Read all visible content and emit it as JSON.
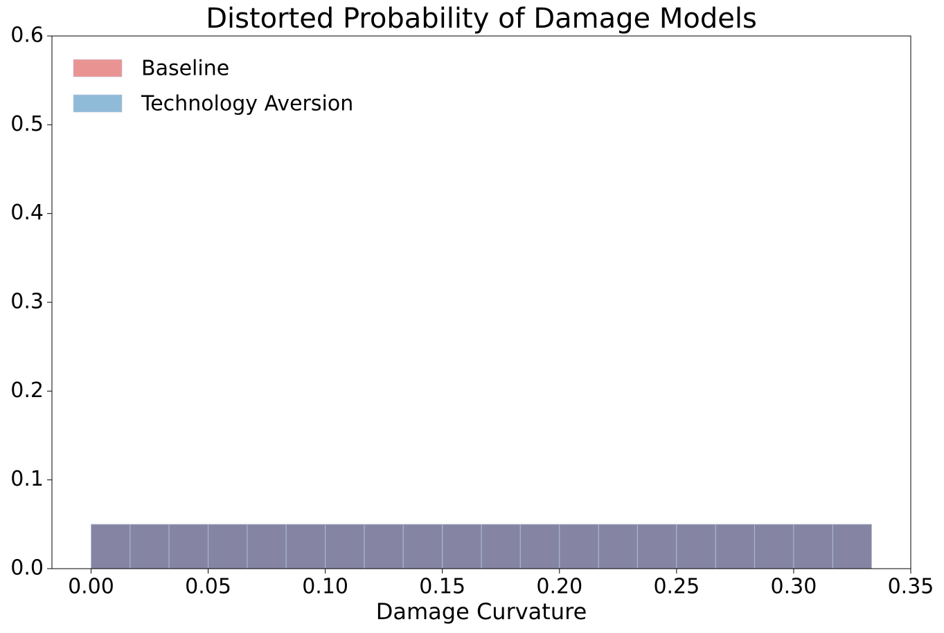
{
  "chart_data": {
    "type": "histogram",
    "title": "Distorted Probability of Damage Models",
    "xlabel": "Damage Curvature",
    "bins": [
      0,
      0.0167,
      0.0333,
      0.05,
      0.0667,
      0.0833,
      0.1,
      0.1167,
      0.1333,
      0.15,
      0.1667,
      0.1833,
      0.2,
      0.2167,
      0.2333,
      0.25,
      0.2667,
      0.2833,
      0.3,
      0.3167,
      0.3333
    ],
    "series": [
      {
        "name": "Baseline",
        "color": "#d62728",
        "values": [
          0.05,
          0.05,
          0.05,
          0.05,
          0.05,
          0.05,
          0.05,
          0.05,
          0.05,
          0.05,
          0.05,
          0.05,
          0.05,
          0.05,
          0.05,
          0.05,
          0.05,
          0.05,
          0.05,
          0.05
        ]
      },
      {
        "name": "Technology Aversion",
        "color": "#1f77b4",
        "values": [
          0.05,
          0.05,
          0.05,
          0.05,
          0.05,
          0.05,
          0.05,
          0.05,
          0.05,
          0.05,
          0.05,
          0.05,
          0.05,
          0.05,
          0.05,
          0.05,
          0.05,
          0.05,
          0.05,
          0.05
        ]
      }
    ],
    "xlim": [
      -0.0167,
      0.35
    ],
    "xticks": [
      {
        "value": 0,
        "label": "0.00"
      },
      0.05,
      {
        "value": 0.1,
        "label": "0.10"
      },
      0.15,
      {
        "value": 0.2,
        "label": "0.20"
      },
      0.25,
      {
        "value": 0.3,
        "label": "0.30"
      },
      0.35
    ],
    "ylim": [
      0,
      0.6
    ],
    "yticks": [
      {
        "value": 0,
        "label": "0.0"
      },
      0.1,
      0.2,
      0.3,
      0.4,
      0.5,
      0.6
    ],
    "legend": "upper left"
  }
}
